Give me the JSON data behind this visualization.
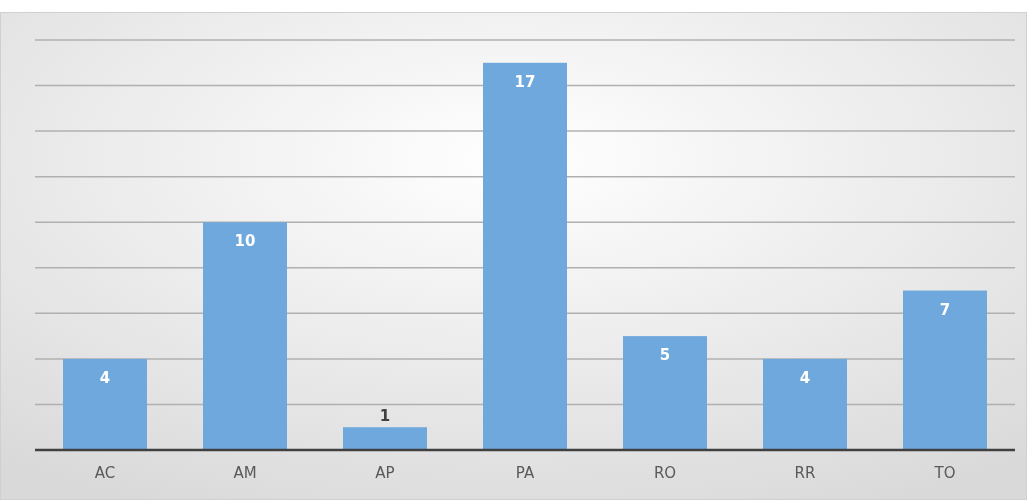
{
  "chart_data": {
    "type": "bar",
    "categories": [
      "AC",
      "AM",
      "AP",
      "PA",
      "RO",
      "RR",
      "TO"
    ],
    "values": [
      4,
      10,
      1,
      17,
      5,
      4,
      7
    ],
    "color": "#6fa8dc",
    "data_labels": true,
    "grid": "y",
    "ylim": [
      0,
      18
    ],
    "yticks": [
      {
        "value": 0,
        "label": null
      },
      {
        "value": 2,
        "label": null
      },
      {
        "value": 4,
        "label": null
      },
      {
        "value": 6,
        "label": null
      },
      {
        "value": 8,
        "label": null
      },
      {
        "value": 10,
        "label": null
      },
      {
        "value": 12,
        "label": null
      },
      {
        "value": 14,
        "label": null
      },
      {
        "value": 16,
        "label": null
      },
      {
        "value": 18,
        "label": null
      }
    ],
    "tick_labels": "x"
  }
}
